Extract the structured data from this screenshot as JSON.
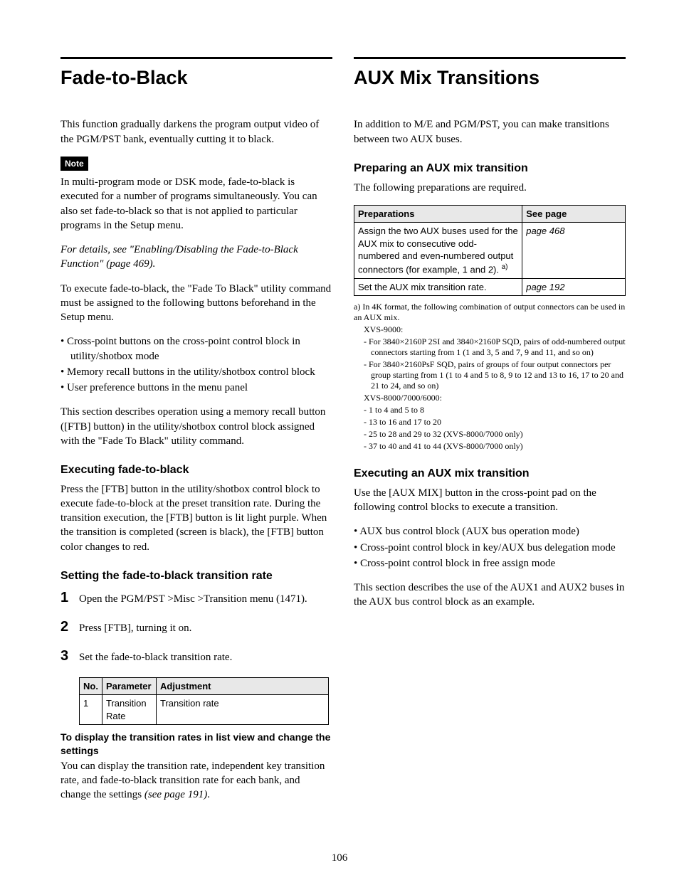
{
  "page_number": "106",
  "left": {
    "h1": "Fade-to-Black",
    "intro": "This function gradually darkens the program output video of the PGM/PST bank, eventually cutting it to black.",
    "note_label": "Note",
    "note_body": "In multi-program mode or DSK mode, fade-to-black is executed for a number of programs simultaneously. You can also set fade-to-black so that is not applied to particular programs in the Setup menu.",
    "ref_italic": "For details, see \"Enabling/Disabling the Fade-to-Black Function\" (page 469).",
    "pre_list": "To execute fade-to-black, the \"Fade To Black\" utility command must be assigned to the following buttons beforehand in the Setup menu.",
    "list": [
      "Cross-point buttons on the cross-point control block in utility/shotbox mode",
      "Memory recall buttons in the utility/shotbox control block",
      "User preference buttons in the menu panel"
    ],
    "post_list": "This section describes operation using a memory recall button ([FTB] button) in the utility/shotbox control block assigned with the \"Fade To Black\" utility command.",
    "h2a": "Executing fade-to-black",
    "exec_body": "Press the [FTB] button in the utility/shotbox control block to execute fade-to-block at the preset transition rate. During the transition execution, the [FTB] button is lit light purple. When the transition is completed (screen is black), the [FTB] button color changes to red.",
    "h2b": "Setting the fade-to-black transition rate",
    "steps": [
      "Open the PGM/PST >Misc >Transition menu (1471).",
      "Press [FTB], turning it on.",
      "Set the fade-to-black transition rate."
    ],
    "param_table": {
      "headers": [
        "No.",
        "Parameter",
        "Adjustment"
      ],
      "row": [
        "1",
        "Transition Rate",
        "Transition rate"
      ]
    },
    "bold_sub": "To display the transition rates in list view and change the settings",
    "tail_body_a": "You can display the transition rate, independent key transition rate, and fade-to-black transition rate for each bank, and change the settings ",
    "tail_body_b": "(see page 191)",
    "tail_body_c": "."
  },
  "right": {
    "h1": "AUX Mix Transitions",
    "intro": "In addition to M/E and PGM/PST, you can make transitions between two AUX buses.",
    "h2a": "Preparing an AUX mix transition",
    "prep_intro": "The following preparations are required.",
    "prep_table": {
      "headers": [
        "Preparations",
        "See page"
      ],
      "rows": [
        {
          "prep_a": "Assign the two AUX buses used for the AUX mix to consecutive odd-numbered and even-numbered output connectors (for example, 1 and 2). ",
          "prep_sup": "a)",
          "page": "page 468"
        },
        {
          "prep": "Set the AUX mix transition rate.",
          "page": "page 192"
        }
      ]
    },
    "footnote": {
      "lead": "a) In 4K format, the following combination of output connectors can be used in an AUX mix.",
      "g1_label": "XVS-9000:",
      "g1_items": [
        "For 3840×2160P 2SI and 3840×2160P SQD, pairs of odd-numbered output connectors starting from 1 (1 and 3, 5 and 7, 9 and 11, and so on)",
        "For 3840×2160PsF SQD, pairs of groups of four output connectors per group starting from 1 (1 to 4 and 5 to 8, 9 to 12 and 13 to 16, 17 to 20 and 21 to 24, and so on)"
      ],
      "g2_label": "XVS-8000/7000/6000:",
      "g2_items": [
        "1 to 4 and 5 to 8",
        "13 to 16 and 17 to 20",
        "25 to 28 and 29 to 32 (XVS-8000/7000 only)",
        "37 to 40 and 41 to 44 (XVS-8000/7000 only)"
      ]
    },
    "h2b": "Executing an AUX mix transition",
    "exec_intro": "Use the [AUX MIX] button in the cross-point pad on the following control blocks to execute a transition.",
    "exec_list": [
      "AUX bus control block (AUX bus operation mode)",
      "Cross-point control block in key/AUX bus delegation mode",
      "Cross-point control block in free assign mode"
    ],
    "exec_tail": "This section describes the use of the AUX1 and AUX2 buses in the AUX bus control block as an example."
  }
}
